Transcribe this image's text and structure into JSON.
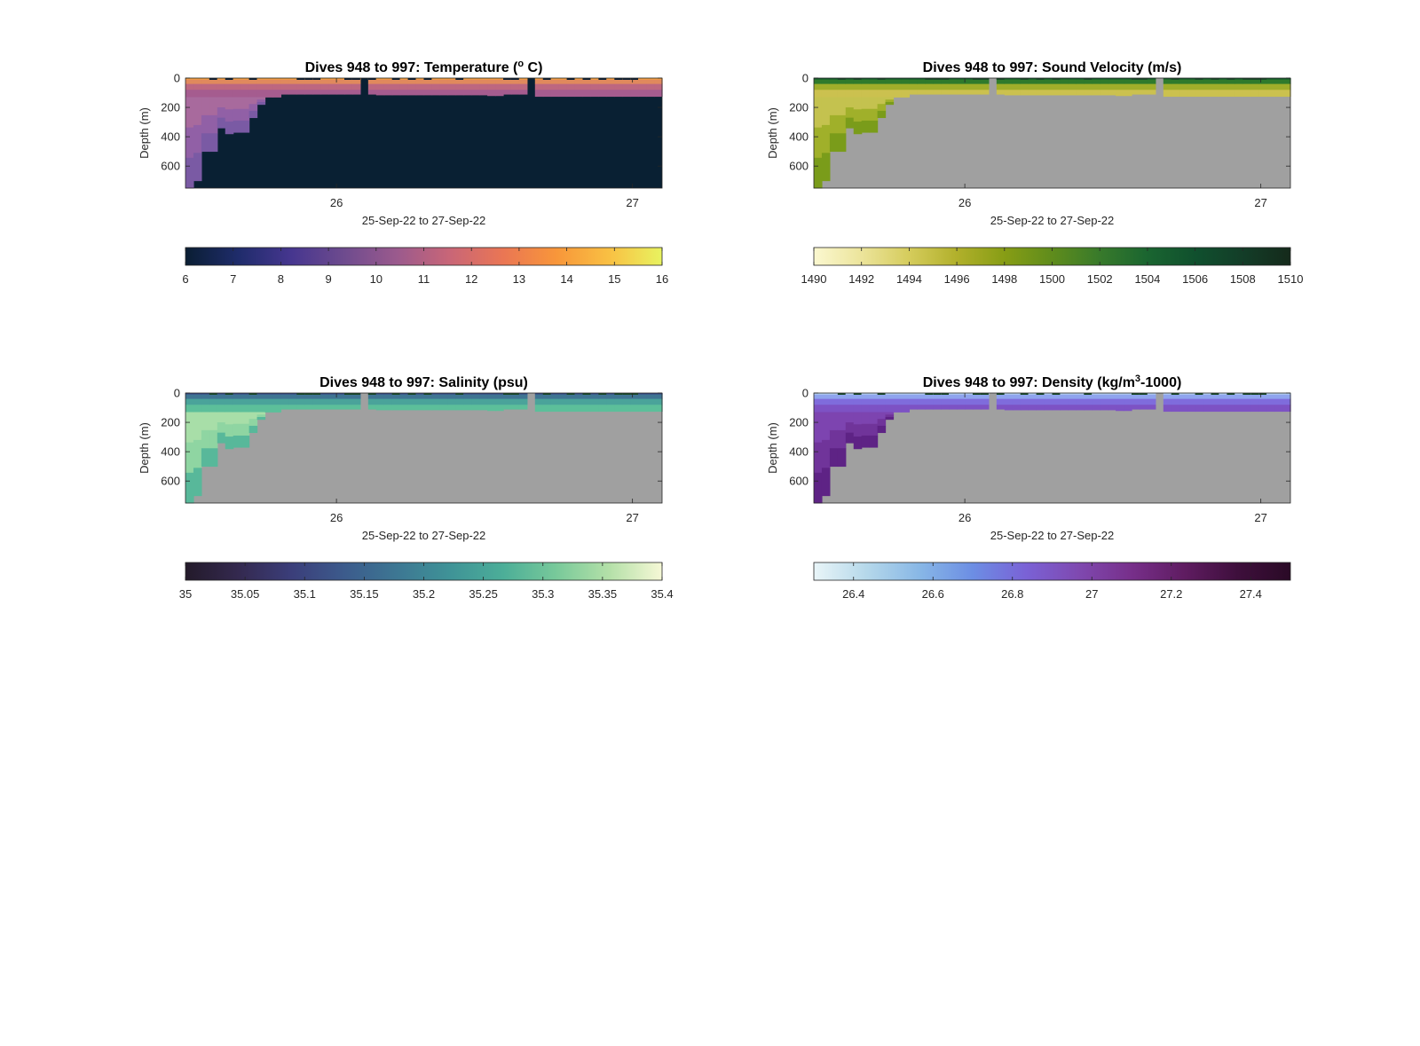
{
  "figure": {
    "background": "#ffffff",
    "nodata_color": "#a0a0a0",
    "panels": [
      {
        "id": "temperature",
        "title_parts": [
          "Dives 948 to 997: Temperature (",
          "o",
          " C)"
        ],
        "title_part_styles": [
          "normal",
          "sup",
          "normal"
        ],
        "ylabel": "Depth (m)",
        "xlabel": "25-Sep-22 to 27-Sep-22",
        "xticks": [
          "26",
          "27"
        ],
        "yticks": [
          "0",
          "200",
          "400",
          "600"
        ],
        "colorbar": {
          "ticks": [
            "6",
            "7",
            "8",
            "9",
            "10",
            "11",
            "12",
            "13",
            "14",
            "15",
            "16"
          ],
          "colormap": [
            "#0a1e33",
            "#1f2c6b",
            "#46368f",
            "#6e4b8e",
            "#9b5a8d",
            "#c96677",
            "#ea7654",
            "#f8963a",
            "#f9c043",
            "#e8f360"
          ]
        },
        "surface_colors": [
          "#f6a13d",
          "#e0895d",
          "#bd6780",
          "#a55c8f"
        ],
        "deep_colors": [
          "#a86a9d",
          "#9160a6",
          "#7a5aa4"
        ],
        "below_color": "#092033"
      },
      {
        "id": "sound-velocity",
        "title_parts": [
          "Dives 948 to 997: Sound Velocity (m/s)"
        ],
        "title_part_styles": [
          "normal"
        ],
        "ylabel": "Depth (m)",
        "xlabel": "25-Sep-22 to 27-Sep-22",
        "xticks": [
          "26",
          "27"
        ],
        "yticks": [
          "0",
          "200",
          "400",
          "600"
        ],
        "colorbar": {
          "ticks": [
            "1490",
            "1492",
            "1494",
            "1496",
            "1498",
            "1500",
            "1502",
            "1504",
            "1506",
            "1508",
            "1510"
          ],
          "colormap": [
            "#fbf8d0",
            "#ece49b",
            "#d5cc5c",
            "#b1b02b",
            "#879d15",
            "#5f8c1c",
            "#387a2b",
            "#1a6530",
            "#10502e",
            "#133d28",
            "#152a1b"
          ]
        },
        "surface_colors": [
          "#155c2d",
          "#2f7a2c",
          "#a0ae2a",
          "#cbc14f"
        ],
        "deep_colors": [
          "#c4c24f",
          "#a0b02a",
          "#7a9c1a"
        ],
        "below_color": "#a0a0a0"
      },
      {
        "id": "salinity",
        "title_parts": [
          "Dives 948 to 997: Salinity (psu)"
        ],
        "title_part_styles": [
          "normal"
        ],
        "ylabel": "Depth (m)",
        "xlabel": "25-Sep-22 to 27-Sep-22",
        "xticks": [
          "26",
          "27"
        ],
        "yticks": [
          "0",
          "200",
          "400",
          "600"
        ],
        "colorbar": {
          "ticks": [
            "35",
            "35.05",
            "35.1",
            "35.15",
            "35.2",
            "35.25",
            "35.3",
            "35.35",
            "35.4"
          ],
          "colormap": [
            "#231a2a",
            "#34294f",
            "#3b3e7a",
            "#3c5b8c",
            "#3d7793",
            "#3f9397",
            "#4cae98",
            "#78c99a",
            "#b4e0a8",
            "#f6f8d6"
          ]
        },
        "surface_colors": [
          "#3a4c85",
          "#3f7492",
          "#4aa39a",
          "#5cbf9a"
        ],
        "deep_colors": [
          "#a8dea8",
          "#8fd5a2",
          "#58b89a"
        ],
        "below_color": "#a0a0a0"
      },
      {
        "id": "density",
        "title_parts": [
          "Dives 948 to 997: Density (kg/m",
          "3",
          "-1000)"
        ],
        "title_part_styles": [
          "normal",
          "sup",
          "normal"
        ],
        "ylabel": "Depth (m)",
        "xlabel": "25-Sep-22 to 27-Sep-22",
        "xticks": [
          "26",
          "27"
        ],
        "yticks": [
          "0",
          "200",
          "400",
          "600"
        ],
        "colorbar": {
          "ticks": [
            "26.4",
            "26.6",
            "26.8",
            "27",
            "27.2",
            "27.4"
          ],
          "colormap": [
            "#e9f5f8",
            "#b5d8ea",
            "#88b7e6",
            "#6c8ee4",
            "#7a62d6",
            "#7f49b0",
            "#772f8a",
            "#5f1c61",
            "#3e0f3c",
            "#2a0a26"
          ]
        },
        "surface_colors": [
          "#b9d4f0",
          "#8fa4ee",
          "#7f6cdc",
          "#7d52c4"
        ],
        "deep_colors": [
          "#7d44b0",
          "#70349a",
          "#5e2385"
        ],
        "below_color": "#a0a0a0"
      }
    ]
  },
  "chart_data": [
    {
      "type": "heatmap",
      "title": "Dives 948 to 997: Temperature (o C)",
      "xlabel": "25-Sep-22 to 27-Sep-22",
      "ylabel": "Depth (m)",
      "x_unit": "day of Sep-2022",
      "xlim": [
        25.49,
        27.1
      ],
      "ylim": [
        750,
        0
      ],
      "xticks": [
        26,
        27
      ],
      "yticks": [
        0,
        200,
        400,
        600
      ],
      "colorbar_range": [
        6,
        16
      ],
      "colorbar_ticks": [
        6,
        7,
        8,
        9,
        10,
        11,
        12,
        13,
        14,
        15,
        16
      ],
      "max_depth_profile": [
        [
          25.49,
          750
        ],
        [
          25.515,
          700
        ],
        [
          25.55,
          500
        ],
        [
          25.59,
          340
        ],
        [
          25.62,
          380
        ],
        [
          25.65,
          370
        ],
        [
          25.7,
          270
        ],
        [
          25.73,
          180
        ],
        [
          25.76,
          130
        ],
        [
          25.8,
          110
        ],
        [
          26.1,
          110
        ],
        [
          26.13,
          115
        ],
        [
          26.5,
          120
        ],
        [
          26.55,
          110
        ],
        [
          26.65,
          125
        ],
        [
          27.1,
          125
        ]
      ],
      "gaps": [
        [
          26.09,
          26.12
        ],
        [
          26.64,
          26.67
        ]
      ]
    },
    {
      "type": "heatmap",
      "title": "Dives 948 to 997: Sound Velocity (m/s)",
      "xlabel": "25-Sep-22 to 27-Sep-22",
      "ylabel": "Depth (m)",
      "x_unit": "day of Sep-2022",
      "xlim": [
        25.49,
        27.1
      ],
      "ylim": [
        750,
        0
      ],
      "xticks": [
        26,
        27
      ],
      "yticks": [
        0,
        200,
        400,
        600
      ],
      "colorbar_range": [
        1490,
        1510
      ],
      "colorbar_ticks": [
        1490,
        1492,
        1494,
        1496,
        1498,
        1500,
        1502,
        1504,
        1506,
        1508,
        1510
      ],
      "max_depth_profile": [
        [
          25.49,
          750
        ],
        [
          25.515,
          700
        ],
        [
          25.55,
          500
        ],
        [
          25.59,
          340
        ],
        [
          25.62,
          380
        ],
        [
          25.65,
          370
        ],
        [
          25.7,
          270
        ],
        [
          25.73,
          180
        ],
        [
          25.76,
          130
        ],
        [
          25.8,
          110
        ],
        [
          26.1,
          110
        ],
        [
          26.13,
          115
        ],
        [
          26.5,
          120
        ],
        [
          26.55,
          110
        ],
        [
          26.65,
          125
        ],
        [
          27.1,
          125
        ]
      ],
      "gaps": [
        [
          26.09,
          26.12
        ],
        [
          26.64,
          26.67
        ]
      ]
    },
    {
      "type": "heatmap",
      "title": "Dives 948 to 997: Salinity (psu)",
      "xlabel": "25-Sep-22 to 27-Sep-22",
      "ylabel": "Depth (m)",
      "x_unit": "day of Sep-2022",
      "xlim": [
        25.49,
        27.1
      ],
      "ylim": [
        750,
        0
      ],
      "xticks": [
        26,
        27
      ],
      "yticks": [
        0,
        200,
        400,
        600
      ],
      "colorbar_range": [
        35,
        35.4
      ],
      "colorbar_ticks": [
        35,
        35.05,
        35.1,
        35.15,
        35.2,
        35.25,
        35.3,
        35.35,
        35.4
      ],
      "max_depth_profile": [
        [
          25.49,
          750
        ],
        [
          25.515,
          700
        ],
        [
          25.55,
          500
        ],
        [
          25.59,
          340
        ],
        [
          25.62,
          380
        ],
        [
          25.65,
          370
        ],
        [
          25.7,
          270
        ],
        [
          25.73,
          180
        ],
        [
          25.76,
          130
        ],
        [
          25.8,
          110
        ],
        [
          26.1,
          110
        ],
        [
          26.13,
          115
        ],
        [
          26.5,
          120
        ],
        [
          26.55,
          110
        ],
        [
          26.65,
          125
        ],
        [
          27.1,
          125
        ]
      ],
      "gaps": [
        [
          26.09,
          26.12
        ],
        [
          26.64,
          26.67
        ]
      ]
    },
    {
      "type": "heatmap",
      "title": "Dives 948 to 997: Density (kg/m3-1000)",
      "xlabel": "25-Sep-22 to 27-Sep-22",
      "ylabel": "Depth (m)",
      "x_unit": "day of Sep-2022",
      "xlim": [
        25.49,
        27.1
      ],
      "ylim": [
        750,
        0
      ],
      "xticks": [
        26,
        27
      ],
      "yticks": [
        0,
        200,
        400,
        600
      ],
      "colorbar_range": [
        26.3,
        27.5
      ],
      "colorbar_ticks": [
        26.4,
        26.6,
        26.8,
        27,
        27.2,
        27.4
      ],
      "max_depth_profile": [
        [
          25.49,
          750
        ],
        [
          25.515,
          700
        ],
        [
          25.55,
          500
        ],
        [
          25.59,
          340
        ],
        [
          25.62,
          380
        ],
        [
          25.65,
          370
        ],
        [
          25.7,
          270
        ],
        [
          25.73,
          180
        ],
        [
          25.76,
          130
        ],
        [
          25.8,
          110
        ],
        [
          26.1,
          110
        ],
        [
          26.13,
          115
        ],
        [
          26.5,
          120
        ],
        [
          26.55,
          110
        ],
        [
          26.65,
          125
        ],
        [
          27.1,
          125
        ]
      ],
      "gaps": [
        [
          26.09,
          26.12
        ],
        [
          26.64,
          26.67
        ]
      ]
    }
  ]
}
